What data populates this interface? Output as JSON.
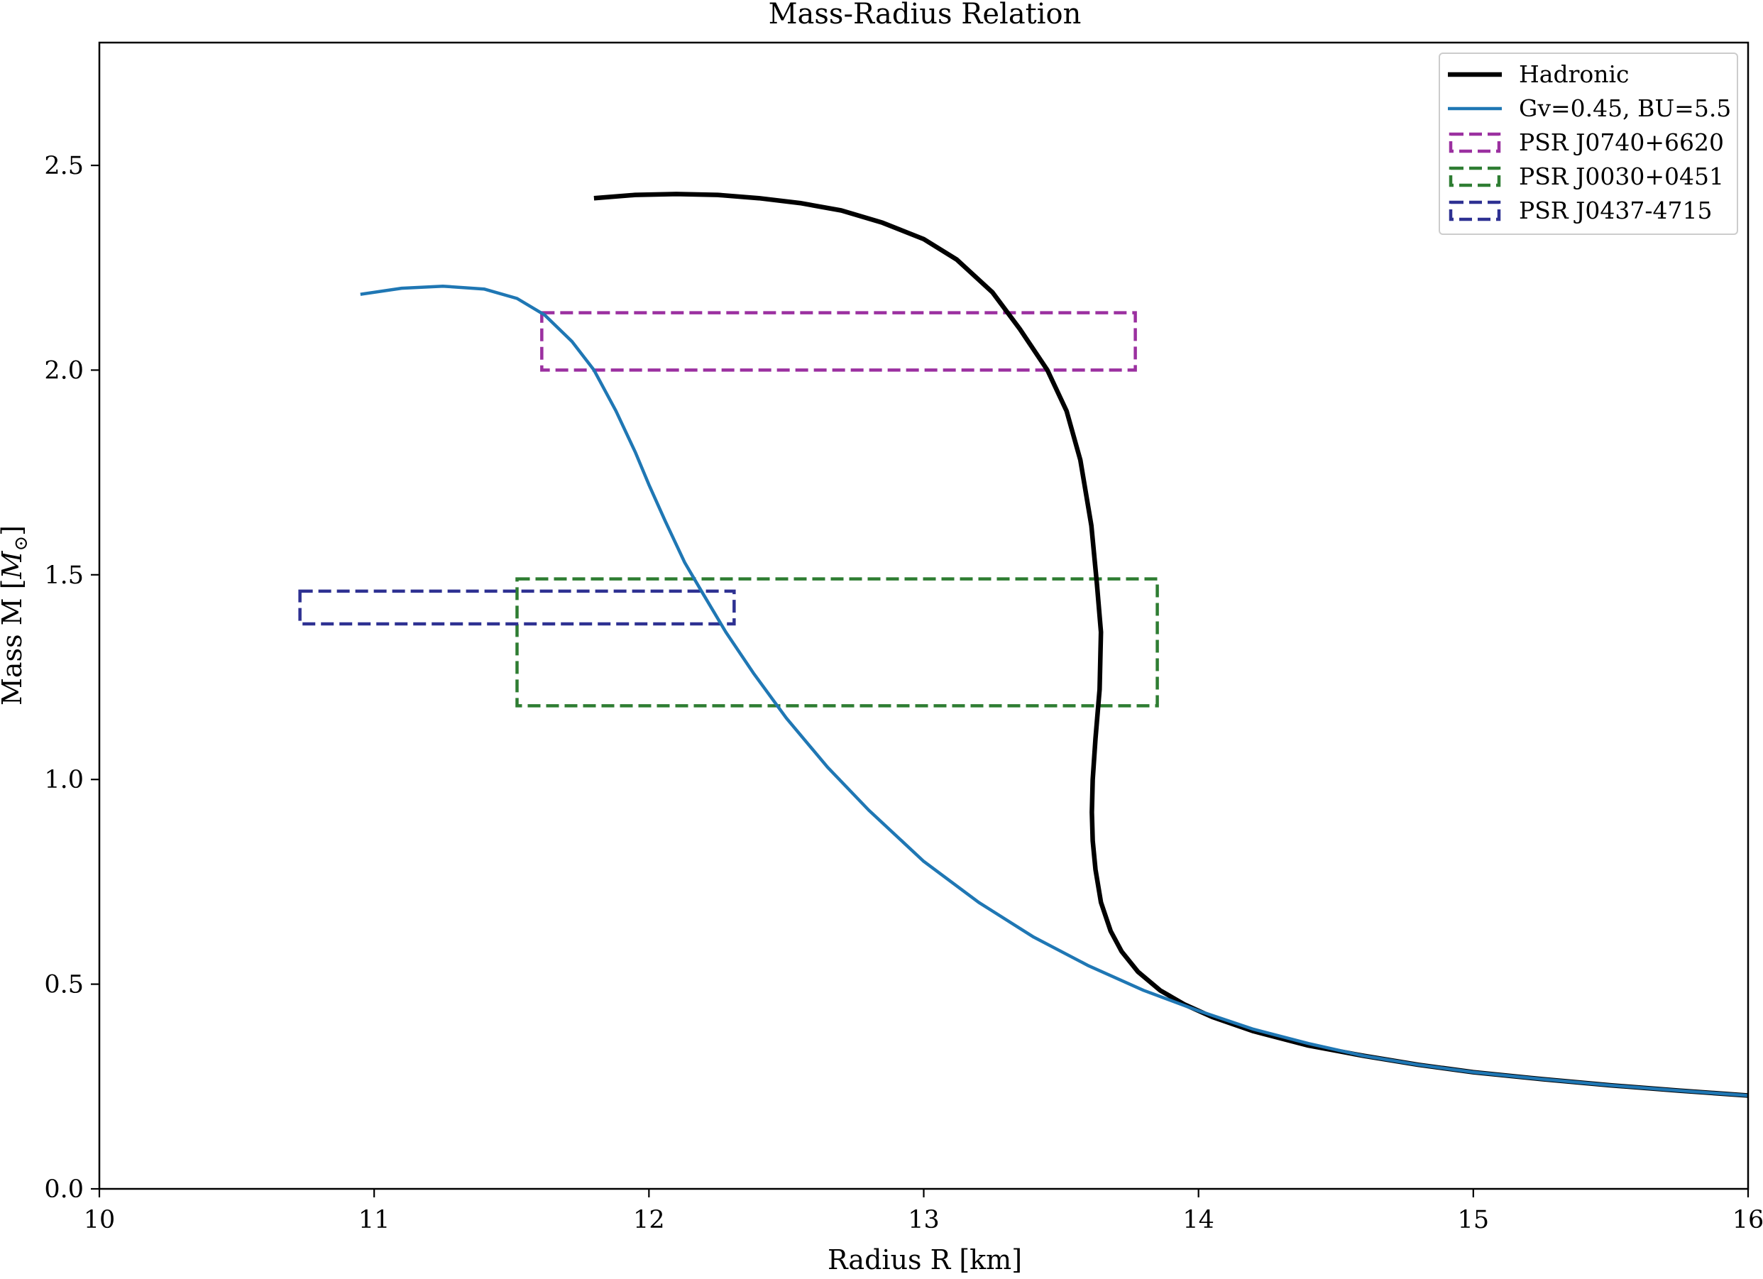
{
  "chart_data": {
    "type": "line",
    "title": "Mass-Radius Relation",
    "xlabel": "Radius R [km]",
    "ylabel": "Mass M [M⊙]",
    "ylabel_main": "Mass M [",
    "ylabel_unit": "M",
    "ylabel_sub": "⊙",
    "ylabel_end": "]",
    "xlim": [
      10,
      16
    ],
    "ylim": [
      0,
      2.8
    ],
    "xticks": [
      "10",
      "11",
      "12",
      "13",
      "14",
      "15",
      "16"
    ],
    "yticks": [
      "0.0",
      "0.5",
      "1.0",
      "1.5",
      "2.0",
      "2.5"
    ],
    "grid": false,
    "legend_position": "top-right",
    "series": [
      {
        "name": "Hadronic",
        "color": "#000000",
        "style": "solid",
        "points": [
          [
            11.8,
            2.42
          ],
          [
            11.95,
            2.428
          ],
          [
            12.1,
            2.43
          ],
          [
            12.25,
            2.428
          ],
          [
            12.4,
            2.42
          ],
          [
            12.55,
            2.408
          ],
          [
            12.7,
            2.39
          ],
          [
            12.85,
            2.36
          ],
          [
            13.0,
            2.32
          ],
          [
            13.12,
            2.27
          ],
          [
            13.25,
            2.19
          ],
          [
            13.35,
            2.1
          ],
          [
            13.45,
            2.0
          ],
          [
            13.52,
            1.9
          ],
          [
            13.57,
            1.78
          ],
          [
            13.61,
            1.62
          ],
          [
            13.63,
            1.48
          ],
          [
            13.645,
            1.36
          ],
          [
            13.64,
            1.22
          ],
          [
            13.625,
            1.1
          ],
          [
            13.615,
            1.0
          ],
          [
            13.612,
            0.92
          ],
          [
            13.615,
            0.85
          ],
          [
            13.625,
            0.78
          ],
          [
            13.645,
            0.7
          ],
          [
            13.68,
            0.63
          ],
          [
            13.72,
            0.58
          ],
          [
            13.78,
            0.53
          ],
          [
            13.86,
            0.485
          ],
          [
            13.95,
            0.45
          ],
          [
            14.05,
            0.42
          ],
          [
            14.2,
            0.385
          ],
          [
            14.4,
            0.35
          ],
          [
            14.6,
            0.325
          ],
          [
            14.8,
            0.303
          ],
          [
            15.0,
            0.285
          ],
          [
            15.25,
            0.268
          ],
          [
            15.5,
            0.253
          ],
          [
            15.75,
            0.24
          ],
          [
            16.0,
            0.228
          ]
        ]
      },
      {
        "name": "Gv=0.45, BU=5.5",
        "color": "#1f77b4",
        "style": "solid",
        "points": [
          [
            10.95,
            2.185
          ],
          [
            11.1,
            2.2
          ],
          [
            11.25,
            2.205
          ],
          [
            11.4,
            2.198
          ],
          [
            11.52,
            2.175
          ],
          [
            11.62,
            2.135
          ],
          [
            11.72,
            2.07
          ],
          [
            11.8,
            2.0
          ],
          [
            11.88,
            1.9
          ],
          [
            11.95,
            1.8
          ],
          [
            12.0,
            1.72
          ],
          [
            12.06,
            1.63
          ],
          [
            12.13,
            1.53
          ],
          [
            12.2,
            1.45
          ],
          [
            12.28,
            1.36
          ],
          [
            12.38,
            1.26
          ],
          [
            12.5,
            1.15
          ],
          [
            12.65,
            1.03
          ],
          [
            12.8,
            0.925
          ],
          [
            13.0,
            0.8
          ],
          [
            13.2,
            0.7
          ],
          [
            13.4,
            0.615
          ],
          [
            13.6,
            0.545
          ],
          [
            13.8,
            0.485
          ],
          [
            14.0,
            0.435
          ],
          [
            14.2,
            0.39
          ],
          [
            14.4,
            0.355
          ],
          [
            14.6,
            0.325
          ],
          [
            14.8,
            0.303
          ],
          [
            15.0,
            0.285
          ],
          [
            15.25,
            0.268
          ],
          [
            15.5,
            0.253
          ],
          [
            15.75,
            0.24
          ],
          [
            16.0,
            0.228
          ]
        ]
      }
    ],
    "regions": [
      {
        "name": "PSR J0740+6620",
        "color": "#9b30a0",
        "style": "dashed",
        "x": [
          11.61,
          13.77
        ],
        "y": [
          2.0,
          2.14
        ]
      },
      {
        "name": "PSR J0030+0451",
        "color": "#2e7d32",
        "style": "dashed",
        "x": [
          11.52,
          13.85
        ],
        "y": [
          1.18,
          1.49
        ]
      },
      {
        "name": "PSR J0437-4715",
        "color": "#2e3192",
        "style": "dashed",
        "x": [
          10.73,
          12.31
        ],
        "y": [
          1.38,
          1.46
        ]
      }
    ]
  }
}
